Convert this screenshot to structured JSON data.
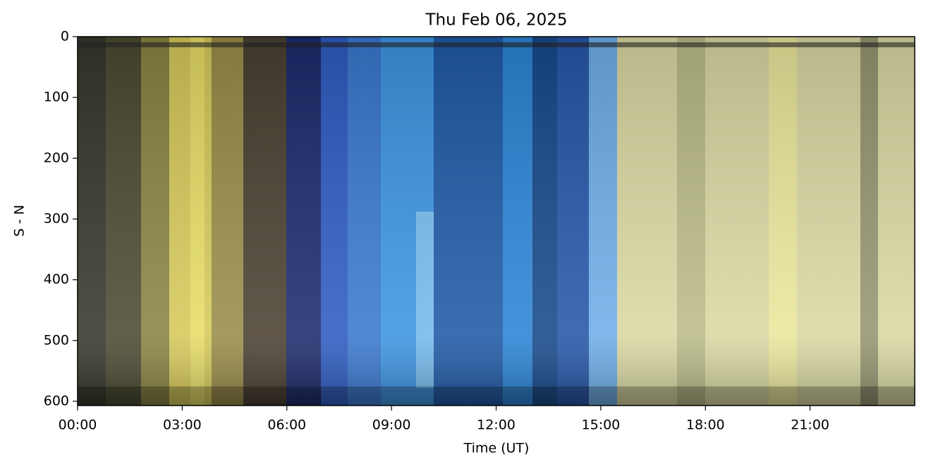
{
  "chart_data": {
    "type": "image",
    "title": "Thu Feb 06, 2025",
    "xlabel": "Time (UT)",
    "ylabel": "S - N",
    "xlim": [
      0,
      24
    ],
    "xticks": [
      {
        "value": 0,
        "label": "00:00"
      },
      {
        "value": 3,
        "label": "03:00"
      },
      {
        "value": 6,
        "label": "06:00"
      },
      {
        "value": 9,
        "label": "09:00"
      },
      {
        "value": 12,
        "label": "12:00"
      },
      {
        "value": 15,
        "label": "15:00"
      },
      {
        "value": 18,
        "label": "18:00"
      },
      {
        "value": 21,
        "label": "21:00"
      }
    ],
    "ylim": [
      607,
      0
    ],
    "yticks": [
      0,
      100,
      200,
      300,
      400,
      500,
      600
    ]
  }
}
